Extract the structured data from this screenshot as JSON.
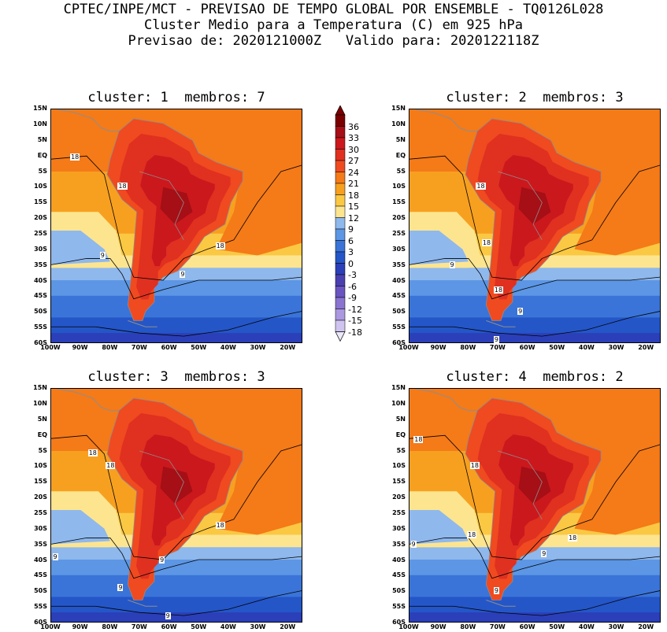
{
  "header": {
    "line1": "CPTEC/INPE/MCT - PREVISAO DE TEMPO GLOBAL POR ENSEMBLE - TQ0126L028",
    "line2": "Cluster Medio para a Temperatura (C) em 925 hPa",
    "line3": "Previsao de: 2020121000Z   Valido para: 2020122118Z"
  },
  "panels": [
    {
      "title": "cluster: 1  membros: 7",
      "labels": [
        "18",
        "18",
        "18",
        "9",
        "9"
      ]
    },
    {
      "title": "cluster: 2  membros: 3",
      "labels": [
        "18",
        "18",
        "9",
        "18",
        "9",
        "9"
      ]
    },
    {
      "title": "cluster: 3  membros: 3",
      "labels": [
        "18",
        "18",
        "18",
        "9",
        "9",
        "9",
        "9"
      ]
    },
    {
      "title": "cluster: 4  membros: 2",
      "labels": [
        "18",
        "18",
        "18",
        "18",
        "9",
        "9",
        "9"
      ]
    }
  ],
  "lat_ticks": [
    "15N",
    "10N",
    "5N",
    "EQ",
    "5S",
    "10S",
    "15S",
    "20S",
    "25S",
    "30S",
    "35S",
    "40S",
    "45S",
    "50S",
    "55S",
    "60S"
  ],
  "lon_ticks": [
    "100W",
    "90W",
    "80W",
    "70W",
    "60W",
    "50W",
    "40W",
    "30W",
    "20W"
  ],
  "colorbar": {
    "labels": [
      "36",
      "33",
      "30",
      "27",
      "24",
      "21",
      "18",
      "15",
      "12",
      "9",
      "6",
      "3",
      "0",
      "-3",
      "-6",
      "-9",
      "-12",
      "-15",
      "-18"
    ],
    "colors": [
      "#7a0000",
      "#a50f15",
      "#cb181d",
      "#e03020",
      "#f04a20",
      "#f57a18",
      "#f7a020",
      "#fbc843",
      "#fde590",
      "#8fb8ec",
      "#5c96e4",
      "#3a74d8",
      "#2456c8",
      "#2b3fb8",
      "#4a3fb0",
      "#6a54c0",
      "#8a74d0",
      "#ab98e0",
      "#cfc4f0"
    ]
  }
}
